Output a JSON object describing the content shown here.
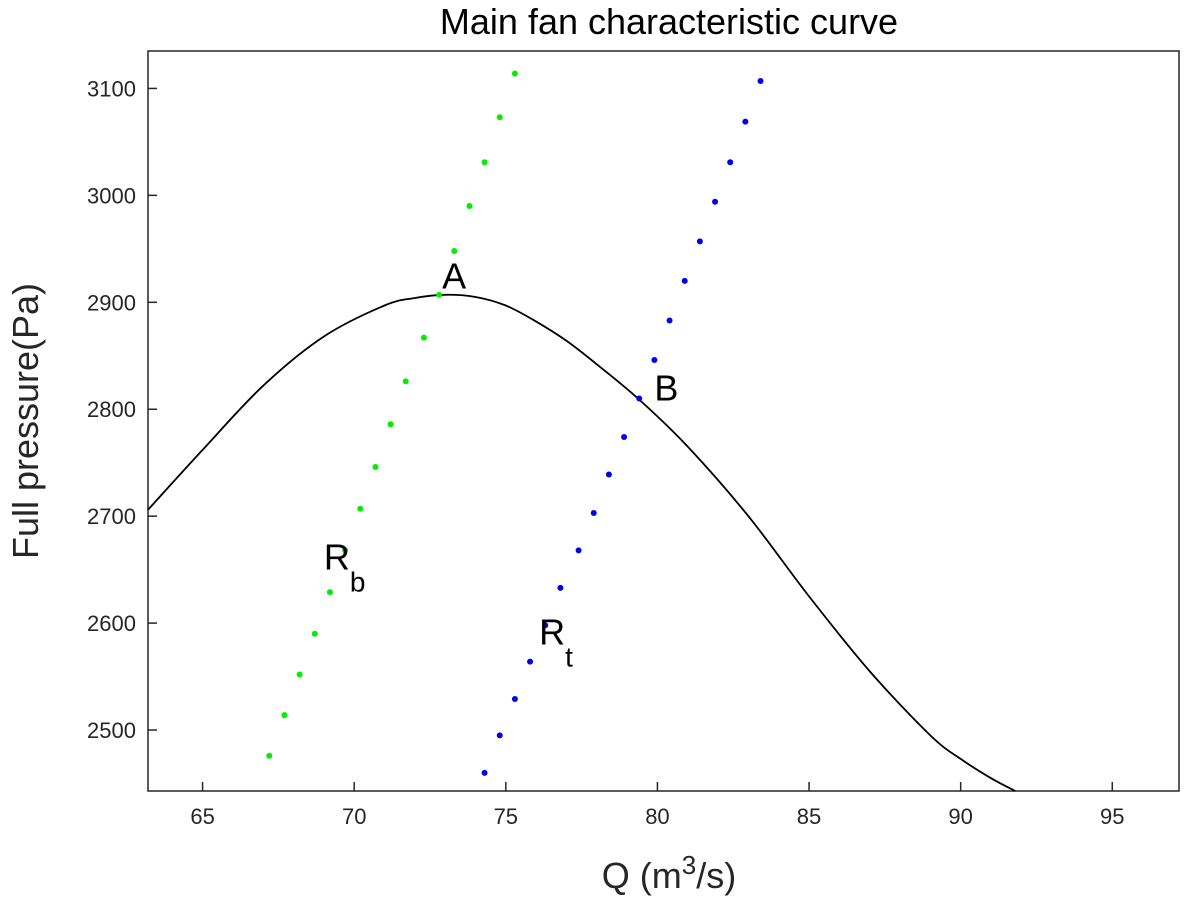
{
  "chart_data": {
    "type": "scatter",
    "title": "Main fan characteristic curve",
    "xlabel": {
      "base": "Q (m",
      "sup": "3",
      "tail": "/s)"
    },
    "ylabel": "Full pressure(Pa)",
    "xlim": [
      63.2,
      97.2
    ],
    "ylim": [
      2443,
      3135
    ],
    "xticks": [
      65,
      70,
      75,
      80,
      85,
      90,
      95
    ],
    "yticks": [
      2500,
      2600,
      2700,
      2800,
      2900,
      3000,
      3100
    ],
    "grid": false,
    "fan_curve": {
      "color": "#000000",
      "x": [
        63.2,
        65,
        67,
        69,
        71,
        72,
        73,
        74,
        75,
        76,
        77,
        78,
        79.4,
        81,
        83,
        85,
        87,
        89,
        90,
        91,
        91.8
      ],
      "y": [
        2706,
        2762,
        2822,
        2868,
        2897,
        2904,
        2907,
        2905,
        2897,
        2882,
        2864,
        2842,
        2809,
        2765,
        2700,
        2625,
        2555,
        2495,
        2473,
        2455,
        2443
      ]
    },
    "series": [
      {
        "color": "#00ee00",
        "x": [
          67.2,
          67.7,
          68.2,
          68.7,
          69.2,
          69.7,
          70.2,
          70.7,
          71.2,
          71.7,
          72.3,
          72.8,
          73.3,
          73.8,
          74.3,
          74.8,
          75.3
        ],
        "y": [
          2476,
          2514,
          2552,
          2590,
          2629,
          2668,
          2707,
          2746,
          2786,
          2826,
          2867,
          2907,
          2948,
          2990,
          3031,
          3073,
          3114
        ]
      },
      {
        "color": "#0000ee",
        "x": [
          74.3,
          74.8,
          75.3,
          75.8,
          76.3,
          76.8,
          77.4,
          77.9,
          78.4,
          78.9,
          79.4,
          79.9,
          80.4,
          80.9,
          81.4,
          81.9,
          82.4,
          82.9,
          83.4
        ],
        "y": [
          2460,
          2495,
          2529,
          2564,
          2598,
          2633,
          2668,
          2703,
          2739,
          2774,
          2810,
          2846,
          2883,
          2920,
          2957,
          2994,
          3031,
          3069,
          3107
        ]
      }
    ],
    "annotations": [
      {
        "text": "A",
        "sub": "",
        "x": 72.9,
        "y": 2913
      },
      {
        "text": "B",
        "sub": "",
        "x": 79.9,
        "y": 2808
      },
      {
        "text": "R",
        "sub": "b",
        "x": 69.0,
        "y": 2650
      },
      {
        "text": "R",
        "sub": "t",
        "x": 76.1,
        "y": 2580
      }
    ]
  }
}
